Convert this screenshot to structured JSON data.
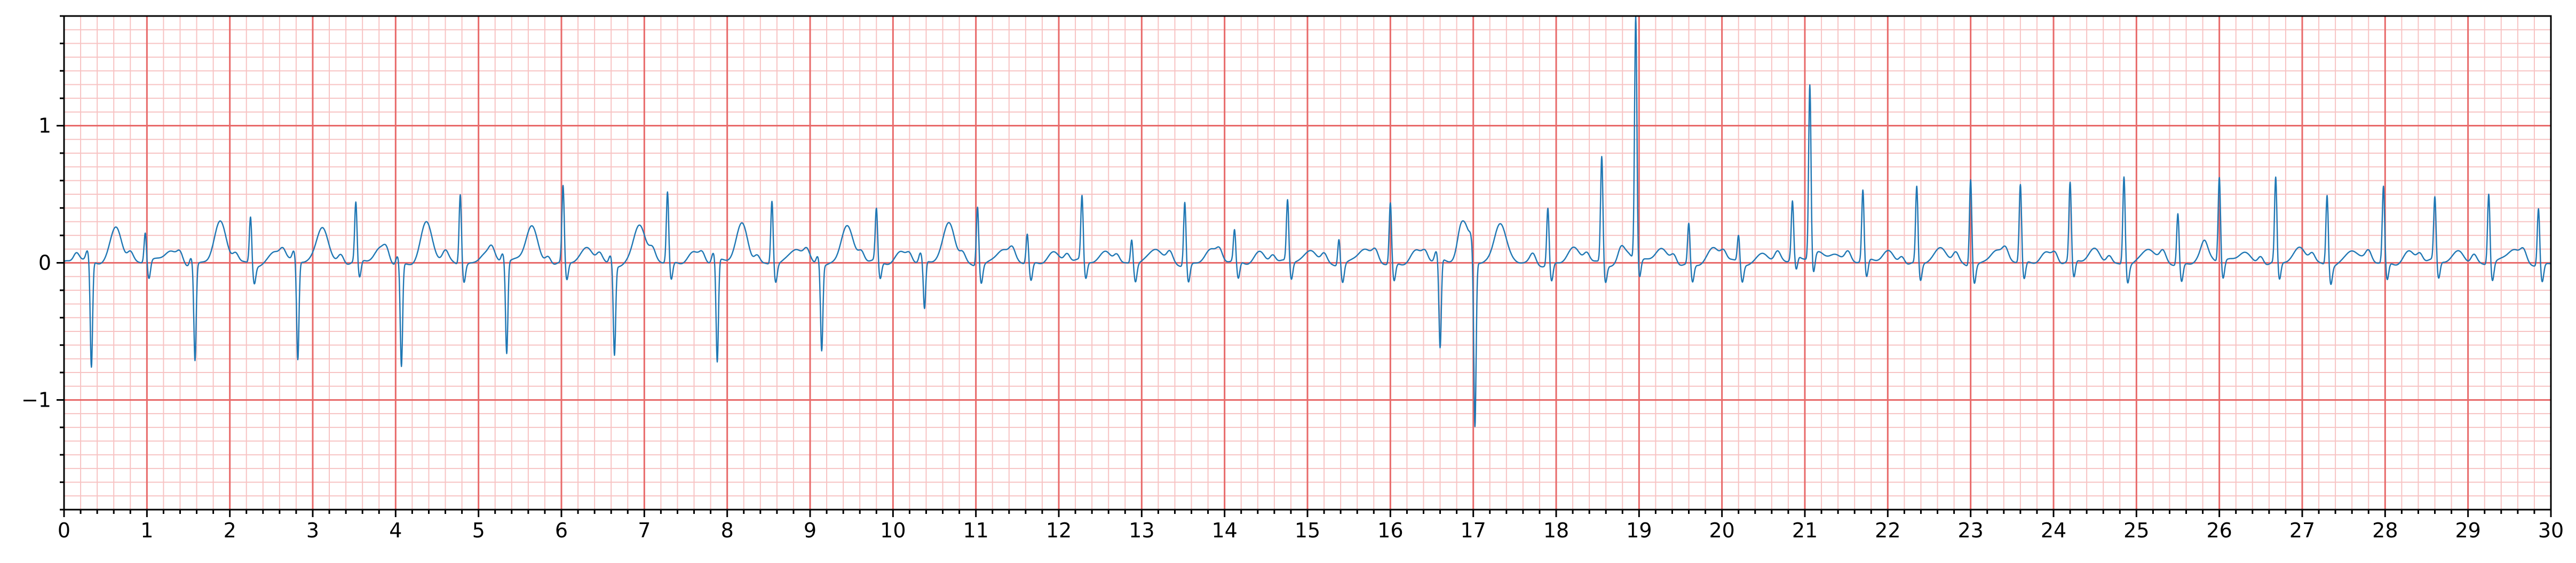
{
  "chart_data": {
    "type": "line",
    "title": "",
    "xlabel": "",
    "ylabel": "",
    "xlim": [
      0,
      30
    ],
    "ylim": [
      -1.8,
      1.8
    ],
    "x_ticks": [
      0,
      1,
      2,
      3,
      4,
      5,
      6,
      7,
      8,
      9,
      10,
      11,
      12,
      13,
      14,
      15,
      16,
      17,
      18,
      19,
      20,
      21,
      22,
      23,
      24,
      25,
      26,
      27,
      28,
      29,
      30
    ],
    "x_tick_labels": [
      "0",
      "1",
      "2",
      "3",
      "4",
      "5",
      "6",
      "7",
      "8",
      "9",
      "10",
      "11",
      "12",
      "13",
      "14",
      "15",
      "16",
      "17",
      "18",
      "19",
      "20",
      "21",
      "22",
      "23",
      "24",
      "25",
      "26",
      "27",
      "28",
      "29",
      "30"
    ],
    "y_ticks": [
      -1,
      0,
      1
    ],
    "y_tick_labels": [
      "−1",
      "0",
      "1"
    ],
    "grid": {
      "major": true,
      "minor": true,
      "major_x_step": 1,
      "minor_x_step": 0.2,
      "major_y_step": 1,
      "minor_y_step": 0.1
    },
    "legend": "none",
    "colors": {
      "line": "#1f77b4",
      "major_grid": "#e86a6a",
      "minor_grid": "#f7c3c3",
      "axes": "#000000"
    },
    "series": [
      {
        "r_peaks": [
          [
            0.33,
            -0.78
          ],
          [
            0.98,
            0.22
          ],
          [
            1.58,
            -0.7
          ],
          [
            2.25,
            0.35
          ],
          [
            2.82,
            -0.72
          ],
          [
            3.52,
            0.43
          ],
          [
            4.07,
            -0.75
          ],
          [
            4.78,
            0.52
          ],
          [
            5.34,
            -0.67
          ],
          [
            6.02,
            0.56
          ],
          [
            6.64,
            -0.65
          ],
          [
            7.28,
            0.52
          ],
          [
            7.88,
            -0.75
          ],
          [
            8.54,
            0.47
          ],
          [
            9.14,
            -0.62
          ],
          [
            9.8,
            0.38
          ],
          [
            10.38,
            -0.35
          ],
          [
            11.02,
            0.44
          ],
          [
            11.62,
            0.22
          ],
          [
            12.28,
            0.47
          ],
          [
            12.88,
            0.18
          ],
          [
            13.52,
            0.47
          ],
          [
            14.12,
            0.23
          ],
          [
            14.76,
            0.45
          ],
          [
            15.38,
            0.2
          ],
          [
            16.0,
            0.45
          ],
          [
            16.6,
            -0.65
          ],
          [
            17.02,
            -1.23
          ],
          [
            17.9,
            0.42
          ],
          [
            18.55,
            0.78
          ],
          [
            18.96,
            1.78
          ],
          [
            19.6,
            0.3
          ],
          [
            20.2,
            0.2
          ],
          [
            20.85,
            0.4
          ],
          [
            21.06,
            1.27
          ],
          [
            21.7,
            0.52
          ],
          [
            22.35,
            0.56
          ],
          [
            23.0,
            0.64
          ],
          [
            23.6,
            0.57
          ],
          [
            24.2,
            0.57
          ],
          [
            24.85,
            0.65
          ],
          [
            25.5,
            0.38
          ],
          [
            26.0,
            0.62
          ],
          [
            26.68,
            0.62
          ],
          [
            27.3,
            0.52
          ],
          [
            27.98,
            0.56
          ],
          [
            28.6,
            0.46
          ],
          [
            29.25,
            0.52
          ],
          [
            29.85,
            0.42
          ]
        ]
      }
    ]
  }
}
